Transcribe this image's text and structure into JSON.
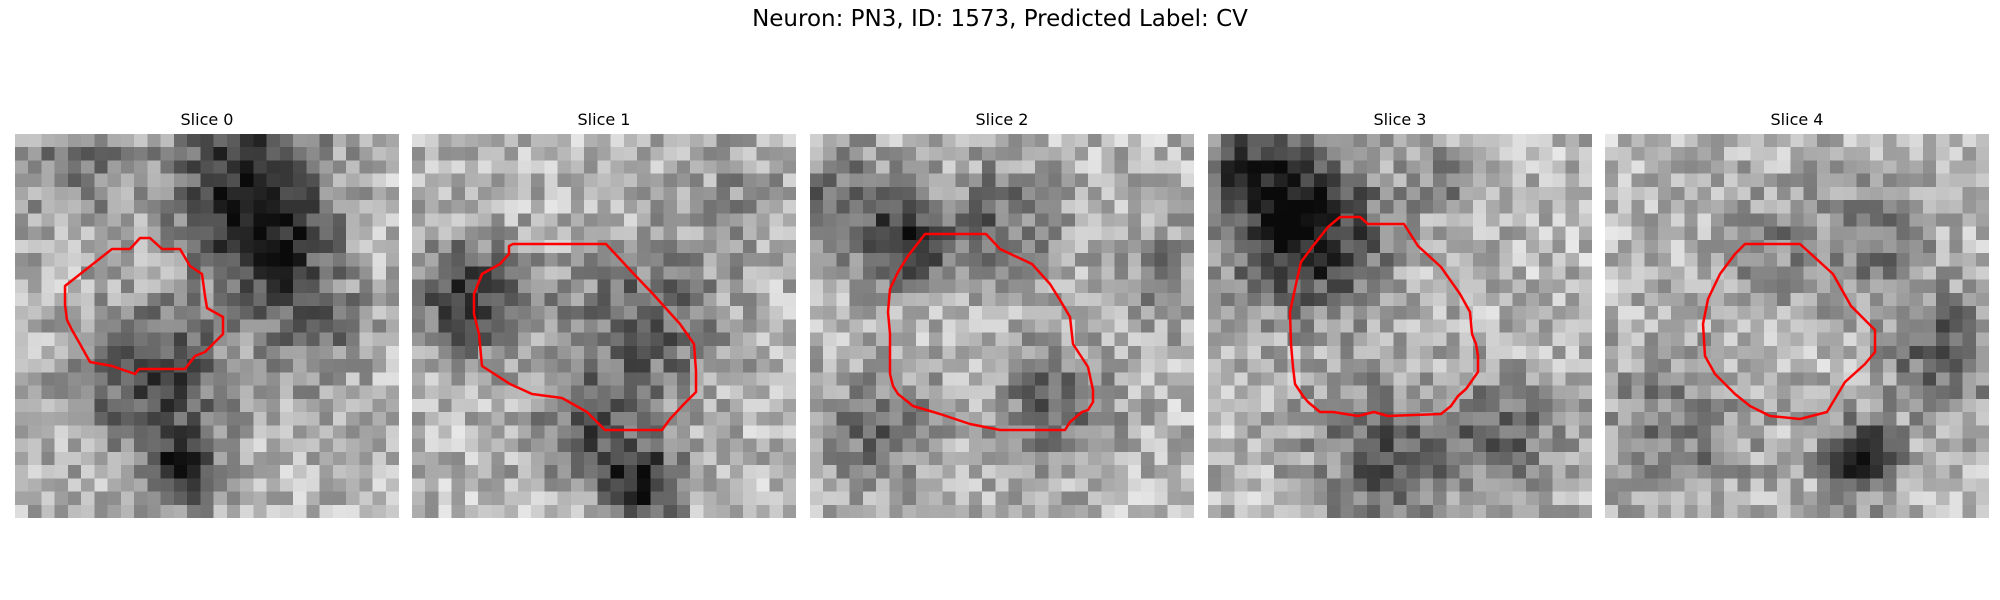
{
  "figure": {
    "title": "Neuron: PN3, ID: 1573, Predicted Label: CV"
  },
  "panels": [
    {
      "title": "Slice 0"
    },
    {
      "title": "Slice 1"
    },
    {
      "title": "Slice 2"
    },
    {
      "title": "Slice 3"
    },
    {
      "title": "Slice 4"
    }
  ],
  "colors": {
    "contour": "#ff0000"
  }
}
